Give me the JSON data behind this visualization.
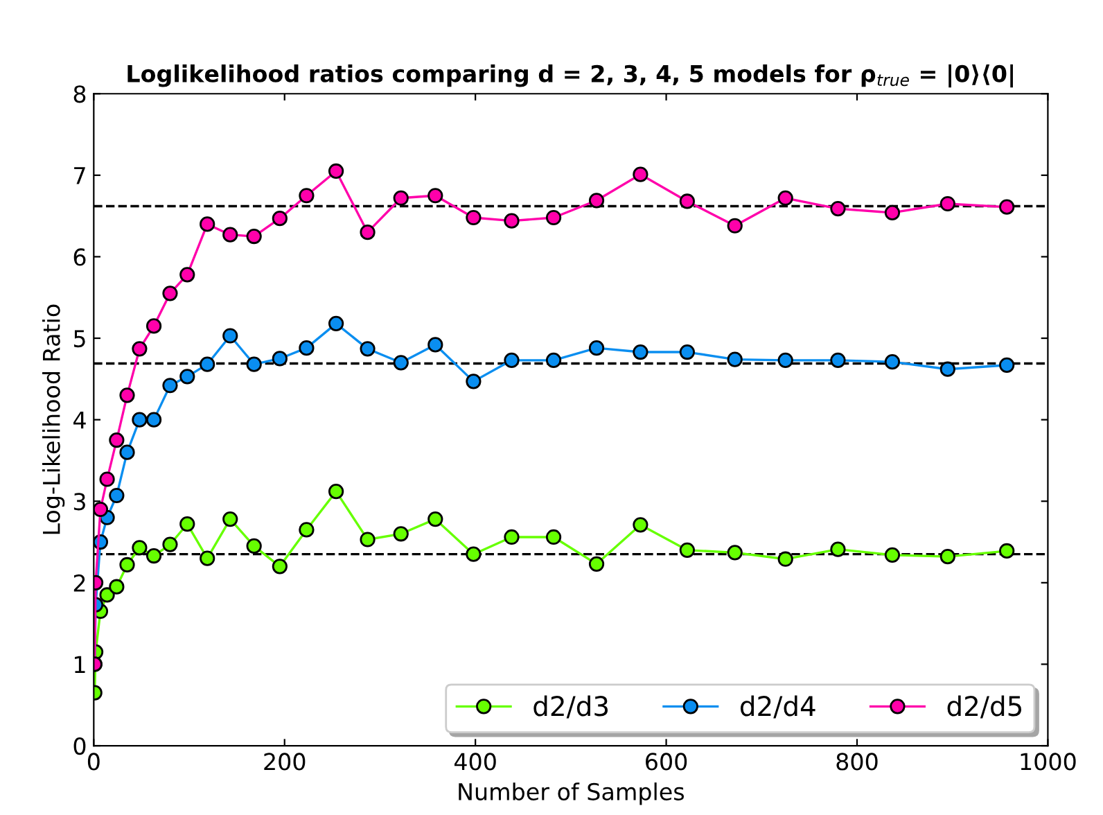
{
  "chart_data": {
    "type": "line",
    "title": "Loglikelihood ratios comparing d = 2, 3, 4, 5 models for ρ$_{true}$ = |0⟩⟨0|",
    "xlabel": "Number of Samples",
    "ylabel": "Log-Likelihood Ratio",
    "x": [
      1,
      2,
      7,
      14,
      24,
      35,
      48,
      63,
      80,
      98,
      119,
      143,
      168,
      195,
      223,
      254,
      287,
      322,
      358,
      398,
      438,
      482,
      527,
      573,
      622,
      672,
      725,
      780,
      837,
      895,
      957
    ],
    "series": [
      {
        "name": "d2/d3",
        "color": "#66ff00",
        "values": [
          0.65,
          1.15,
          1.65,
          1.85,
          1.95,
          2.22,
          2.43,
          2.33,
          2.47,
          2.72,
          2.3,
          2.78,
          2.45,
          2.2,
          2.65,
          3.12,
          2.53,
          2.6,
          2.78,
          2.35,
          2.56,
          2.56,
          2.23,
          2.71,
          2.4,
          2.37,
          2.29,
          2.41,
          2.34,
          2.32,
          2.39
        ]
      },
      {
        "name": "d2/d4",
        "color": "#0a8ef0",
        "values": [
          1.0,
          1.73,
          2.5,
          2.8,
          3.07,
          3.6,
          4.0,
          4.0,
          4.42,
          4.53,
          4.68,
          5.03,
          4.68,
          4.75,
          4.88,
          5.18,
          4.87,
          4.7,
          4.92,
          4.47,
          4.73,
          4.73,
          4.88,
          4.83,
          4.83,
          4.74,
          4.73,
          4.73,
          4.71,
          4.62,
          4.67
        ]
      },
      {
        "name": "d2/d5",
        "color": "#ff00aa",
        "values": [
          1.0,
          2.0,
          2.9,
          3.27,
          3.75,
          4.3,
          4.87,
          5.15,
          5.55,
          5.78,
          6.4,
          6.27,
          6.25,
          6.47,
          6.75,
          7.05,
          6.3,
          6.72,
          6.75,
          6.48,
          6.44,
          6.48,
          6.69,
          7.01,
          6.68,
          6.38,
          6.72,
          6.59,
          6.54,
          6.65,
          6.61
        ]
      }
    ],
    "ref_lines": [
      {
        "axis": "y",
        "value": 2.35,
        "color": "#000000",
        "line_style": "dashed"
      },
      {
        "axis": "y",
        "value": 4.69,
        "color": "#000000",
        "line_style": "dashed"
      },
      {
        "axis": "y",
        "value": 6.62,
        "color": "#000000",
        "line_style": "dashed"
      }
    ],
    "xlim": [
      0,
      1000
    ],
    "xticks": [
      0,
      200,
      400,
      600,
      800,
      1000
    ],
    "ylim": [
      0,
      8
    ],
    "yticks": [
      0,
      1,
      2,
      3,
      4,
      5,
      6,
      7,
      8
    ],
    "marker": "circle",
    "line_style": "solid",
    "legend": "bottom right",
    "grid": false
  }
}
